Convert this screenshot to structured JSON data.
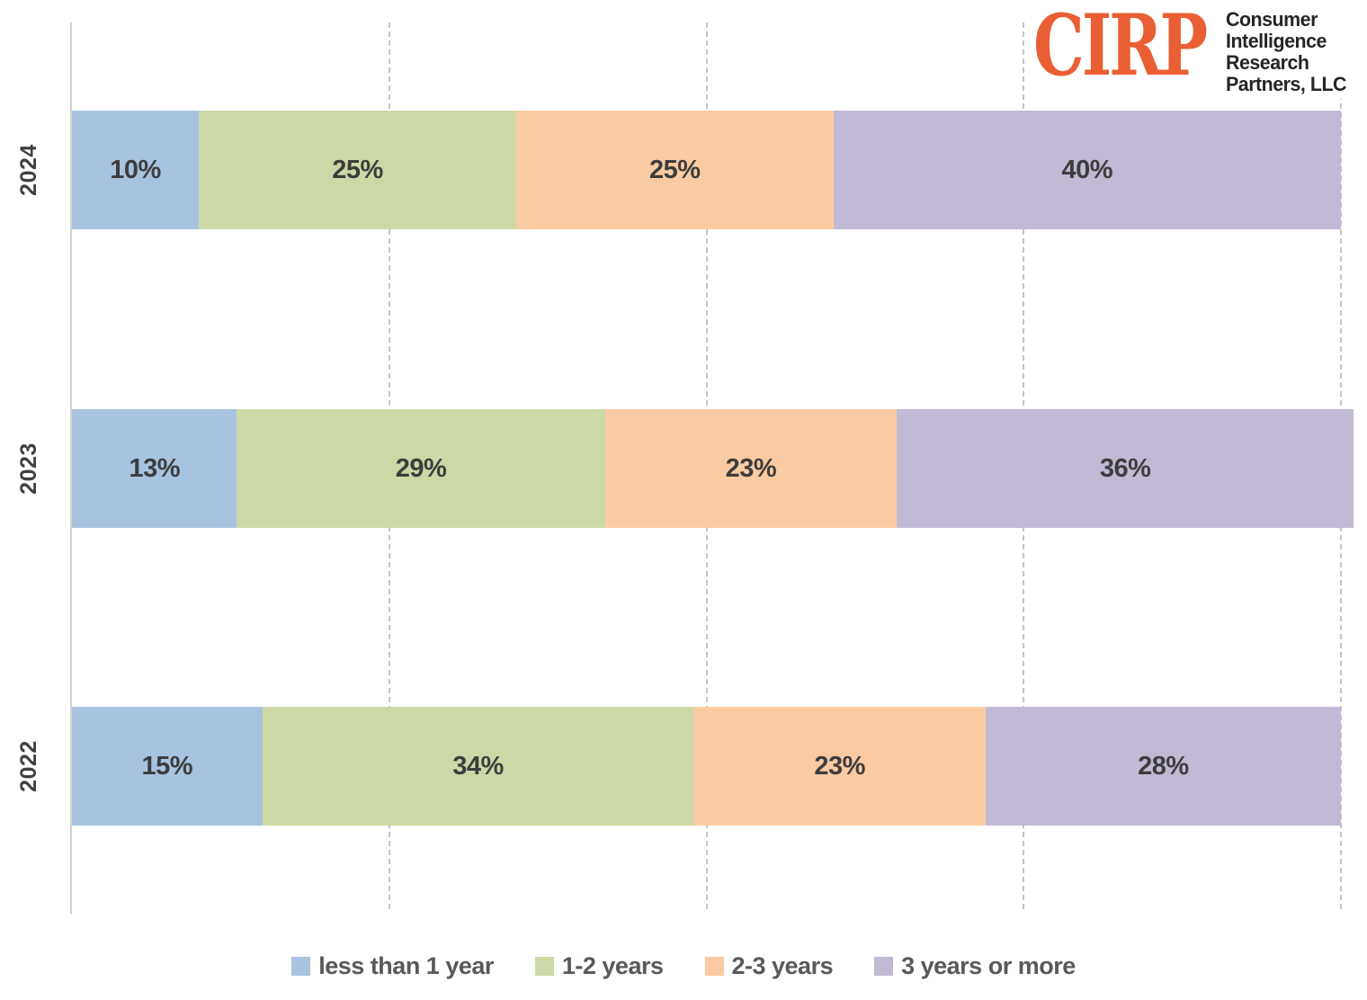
{
  "logo": {
    "acronym": "CIRP",
    "lines": [
      "Consumer",
      "Intelligence",
      "Research",
      "Partners, LLC"
    ],
    "accent_color": "#E95F33",
    "text_color": "#252525"
  },
  "chart_data": {
    "type": "bar",
    "orientation": "horizontal-stacked",
    "categories": [
      "2024",
      "2023",
      "2022"
    ],
    "series": [
      {
        "name": "less than 1 year",
        "color": "#A8C3DF",
        "values": [
          10,
          13,
          15
        ]
      },
      {
        "name": "1-2 years",
        "color": "#CCD9A7",
        "values": [
          25,
          29,
          34
        ]
      },
      {
        "name": "2-3 years",
        "color": "#FACBA2",
        "values": [
          25,
          23,
          23
        ]
      },
      {
        "name": "3 years or more",
        "color": "#C2B9D4",
        "values": [
          40,
          36,
          28
        ]
      }
    ],
    "value_labels": [
      [
        "10%",
        "25%",
        "25%",
        "40%"
      ],
      [
        "13%",
        "29%",
        "23%",
        "36%"
      ],
      [
        "15%",
        "34%",
        "23%",
        "28%"
      ]
    ],
    "xlim": [
      0,
      100
    ],
    "gridlines_percent": [
      25,
      50,
      75,
      100
    ],
    "grid": "dashed-vertical",
    "legend_position": "bottom",
    "title": "",
    "xlabel": "",
    "ylabel": ""
  }
}
